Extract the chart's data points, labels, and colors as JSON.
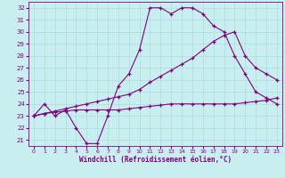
{
  "xlabel": "Windchill (Refroidissement éolien,°C)",
  "xlim": [
    -0.5,
    23.5
  ],
  "ylim": [
    20.5,
    32.5
  ],
  "yticks": [
    21,
    22,
    23,
    24,
    25,
    26,
    27,
    28,
    29,
    30,
    31,
    32
  ],
  "xticks": [
    0,
    1,
    2,
    3,
    4,
    5,
    6,
    7,
    8,
    9,
    10,
    11,
    12,
    13,
    14,
    15,
    16,
    17,
    18,
    19,
    20,
    21,
    22,
    23
  ],
  "bg_color": "#c8eef0",
  "grid_color": "#aadddd",
  "line_color": "#800080",
  "line1_x": [
    0,
    1,
    2,
    3,
    4,
    5,
    6,
    7,
    8,
    9,
    10,
    11,
    12,
    13,
    14,
    15,
    16,
    17,
    18,
    19,
    20,
    21,
    22,
    23
  ],
  "line1_y": [
    23.0,
    24.0,
    23.0,
    23.5,
    22.0,
    20.7,
    20.7,
    23.0,
    25.5,
    26.5,
    28.5,
    32.0,
    32.0,
    31.5,
    32.0,
    32.0,
    31.5,
    30.5,
    30.0,
    28.0,
    26.5,
    25.0,
    24.5,
    24.0
  ],
  "line2_x": [
    0,
    1,
    2,
    3,
    4,
    5,
    6,
    7,
    8,
    9,
    10,
    11,
    12,
    13,
    14,
    15,
    16,
    17,
    18,
    19,
    20,
    21,
    22,
    23
  ],
  "line2_y": [
    23.0,
    23.2,
    23.4,
    23.6,
    23.8,
    24.0,
    24.2,
    24.4,
    24.6,
    24.8,
    25.2,
    25.8,
    26.3,
    26.8,
    27.3,
    27.8,
    28.5,
    29.2,
    29.7,
    30.0,
    28.0,
    27.0,
    26.5,
    26.0
  ],
  "line3_x": [
    0,
    1,
    2,
    3,
    4,
    5,
    6,
    7,
    8,
    9,
    10,
    11,
    12,
    13,
    14,
    15,
    16,
    17,
    18,
    19,
    20,
    21,
    22,
    23
  ],
  "line3_y": [
    23.0,
    23.2,
    23.3,
    23.4,
    23.5,
    23.5,
    23.5,
    23.5,
    23.5,
    23.6,
    23.7,
    23.8,
    23.9,
    24.0,
    24.0,
    24.0,
    24.0,
    24.0,
    24.0,
    24.0,
    24.1,
    24.2,
    24.3,
    24.5
  ]
}
